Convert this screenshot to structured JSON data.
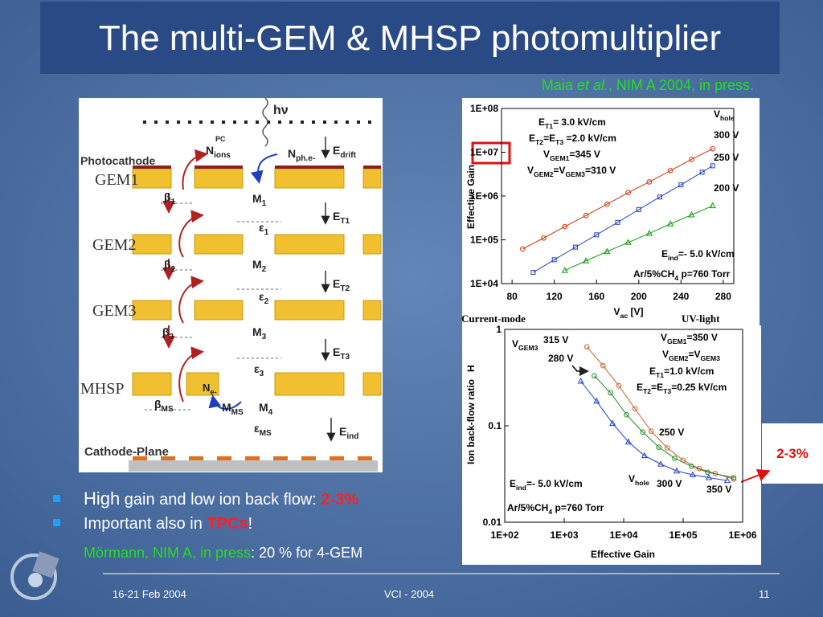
{
  "title": "The multi-GEM & MHSP photomultiplier",
  "citation": {
    "author": "Maia ",
    "etal": "et al.",
    "rest": ", NIM A 2004, in press."
  },
  "diagram": {
    "layers": [
      "Photocathode",
      "GEM1",
      "GEM2",
      "GEM3",
      "MHSP",
      "Cathode-Plane"
    ],
    "labels": [
      [
        "hν"
      ],
      [
        "N",
        "ions"
      ],
      [
        "PC"
      ],
      [
        "N",
        "ph.e-"
      ],
      [
        "E",
        "drift"
      ],
      [
        "E",
        "T1"
      ],
      [
        "E",
        "T2"
      ],
      [
        "E",
        "T3"
      ],
      [
        "E",
        "ind"
      ],
      [
        "M",
        "1"
      ],
      [
        "M",
        "2"
      ],
      [
        "M",
        "3"
      ],
      [
        "M",
        "4"
      ],
      [
        "M",
        "MS"
      ],
      [
        "N",
        "e-"
      ],
      [
        "β",
        "1"
      ],
      [
        "β",
        "2"
      ],
      [
        "β",
        "3"
      ],
      [
        "β",
        "MS"
      ],
      [
        "ε",
        "1"
      ],
      [
        "ε",
        "2"
      ],
      [
        "ε",
        "3"
      ],
      [
        "ε",
        "MS"
      ]
    ]
  },
  "chart_data": [
    {
      "type": "scatter",
      "log_y": true,
      "xlabel": [
        "V",
        "ac",
        " [V]"
      ],
      "ylabel": "Effective Gain",
      "xlim": [
        70,
        290
      ],
      "ylim": [
        10000,
        100000000
      ],
      "xticks": [
        80,
        120,
        160,
        200,
        240,
        280
      ],
      "yticks": [
        {
          "value": 10000,
          "label": "1E+04"
        },
        {
          "value": 100000,
          "label": "1E+05"
        },
        {
          "value": 1000000,
          "label": "1E+06"
        },
        {
          "value": 10000000,
          "label": "1E+07"
        },
        {
          "value": 100000000,
          "label": "1E+08"
        }
      ],
      "series": [
        {
          "name": "300 V",
          "color": "#cc3300",
          "marker": "circle",
          "x": [
            90,
            110,
            130,
            150,
            170,
            190,
            210,
            230,
            250,
            270
          ],
          "values": [
            62000,
            110000,
            200000,
            360000,
            650000,
            1200000,
            2100000,
            3800000,
            6900000,
            12000000
          ]
        },
        {
          "name": "250 V",
          "color": "#1f3fbf",
          "marker": "square",
          "x": [
            100,
            120,
            140,
            160,
            180,
            200,
            220,
            240,
            260,
            270
          ],
          "values": [
            18000,
            35000,
            68000,
            130000,
            250000,
            490000,
            950000,
            1800000,
            3500000,
            4900000
          ]
        },
        {
          "name": "200 V",
          "color": "#0a9a0a",
          "marker": "triangle",
          "x": [
            130,
            150,
            170,
            190,
            210,
            230,
            250,
            270
          ],
          "values": [
            20000,
            33000,
            54000,
            87000,
            140000,
            230000,
            370000,
            600000
          ]
        }
      ],
      "annotations": [
        [
          "E",
          "T1",
          "= 3.0 kV/cm"
        ],
        [
          "E",
          "T2",
          "=E",
          "T3",
          " =2.0 kV/cm"
        ],
        [
          "V",
          "GEM1",
          "=345 V"
        ],
        [
          "V",
          "GEM2",
          "=V",
          "GEM3",
          "=310 V"
        ],
        [
          "V",
          "hole"
        ],
        [
          "E",
          "ind",
          "=- 5.0 kV/cm"
        ],
        [
          "Ar/5%CH",
          "4",
          "  p=760 Torr"
        ],
        [
          "Current-mode"
        ],
        [
          "UV-light"
        ]
      ]
    },
    {
      "type": "scatter",
      "log_x": true,
      "log_y": true,
      "xlabel": [
        "Effective Gain"
      ],
      "ylabel": "Ion back-flow ratio",
      "xlim": [
        100,
        1000000
      ],
      "ylim": [
        0.01,
        1
      ],
      "xticks": [
        {
          "value": 100,
          "label": "1E+02"
        },
        {
          "value": 1000,
          "label": "1E+03"
        },
        {
          "value": 10000,
          "label": "1E+04"
        },
        {
          "value": 100000,
          "label": "1E+05"
        },
        {
          "value": 1000000,
          "label": "1E+06"
        }
      ],
      "yticks": [
        0.01,
        0.1,
        1
      ],
      "series": [
        {
          "color": "#c8602b",
          "marker": "circle",
          "x": [
            2400,
            4500,
            8300,
            15500,
            29000,
            54000,
            100000,
            186000,
            347000,
            708000
          ],
          "values": [
            0.66,
            0.42,
            0.26,
            0.15,
            0.088,
            0.059,
            0.044,
            0.036,
            0.032,
            0.028
          ]
        },
        {
          "color": "#208a20",
          "marker": "circle",
          "x": [
            3200,
            6000,
            11200,
            21000,
            39000,
            72000,
            138000,
            257000,
            708000
          ],
          "values": [
            0.33,
            0.22,
            0.13,
            0.086,
            0.06,
            0.046,
            0.038,
            0.033,
            0.029
          ]
        },
        {
          "color": "#2040d0",
          "marker": "triangle",
          "x": [
            1900,
            3500,
            6500,
            12000,
            22400,
            42000,
            78000,
            145000,
            270000,
            550000
          ],
          "values": [
            0.29,
            0.18,
            0.106,
            0.068,
            0.049,
            0.04,
            0.034,
            0.031,
            0.029,
            0.027
          ]
        }
      ],
      "annotations": [
        [
          "V",
          "GEM3"
        ],
        [
          "315 V"
        ],
        [
          "280 V"
        ],
        [
          "V",
          "GEM1",
          "=350 V"
        ],
        [
          "V",
          "GEM2",
          "=V",
          "GEM3"
        ],
        [
          "E",
          "T1",
          "=1.0 kV/cm"
        ],
        [
          "E",
          "T2",
          "=E",
          "T3",
          "=0.25 kV/cm"
        ],
        [
          "250 V"
        ],
        [
          "E",
          "ind",
          "=- 5.0 kV/cm"
        ],
        [
          "V",
          "hole"
        ],
        [
          "300 V"
        ],
        [
          "350 V"
        ],
        [
          "Ar/5%CH",
          "4",
          "  p=760 Torr"
        ],
        [
          "H"
        ]
      ]
    }
  ],
  "callout": "2-3%",
  "bullets": [
    {
      "lead": "High",
      "text": " gain and low ion back flow: ",
      "emph": "2-3%"
    },
    {
      "text": "Important also in ",
      "emph": "TPCs",
      "tail": "!"
    }
  ],
  "reference": {
    "source": "Mörmann, NIM A, in press",
    "text": ": 20 % for 4-GEM"
  },
  "footer": {
    "date": "16-21 Feb 2004",
    "event": "VCI  - 2004",
    "page": "11"
  }
}
